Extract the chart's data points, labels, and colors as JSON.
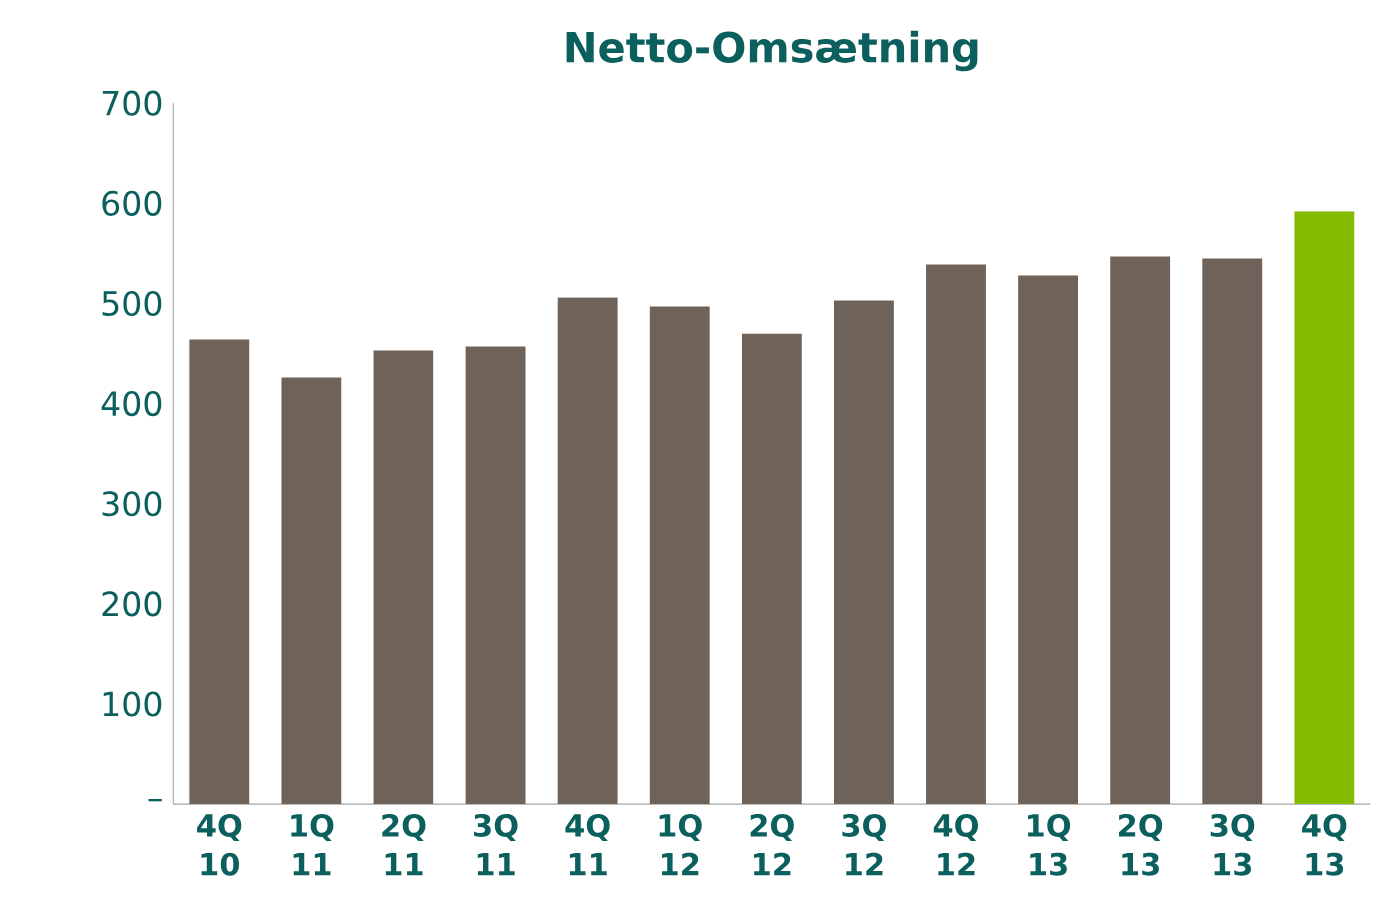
{
  "chart_data": {
    "type": "bar",
    "title": "Netto-Omsætning",
    "categories": [
      "4Q 10",
      "1Q 11",
      "2Q 11",
      "3Q 11",
      "4Q 11",
      "1Q 12",
      "2Q 12",
      "3Q 12",
      "4Q 12",
      "1Q 13",
      "2Q 13",
      "3Q 13",
      "4Q 13"
    ],
    "values": [
      464,
      426,
      453,
      457,
      506,
      497,
      470,
      503,
      539,
      528,
      547,
      545,
      592
    ],
    "colors": [
      "#6e6259",
      "#6e6259",
      "#6e6259",
      "#6e6259",
      "#6e6259",
      "#6e6259",
      "#6e6259",
      "#6e6259",
      "#6e6259",
      "#6e6259",
      "#6e6259",
      "#6e6259",
      "#84bd00"
    ],
    "ylim": [
      0,
      700
    ],
    "yticks": [
      {
        "value": 0,
        "label": "–"
      },
      100,
      200,
      300,
      400,
      500,
      600,
      700
    ],
    "grid": false
  }
}
